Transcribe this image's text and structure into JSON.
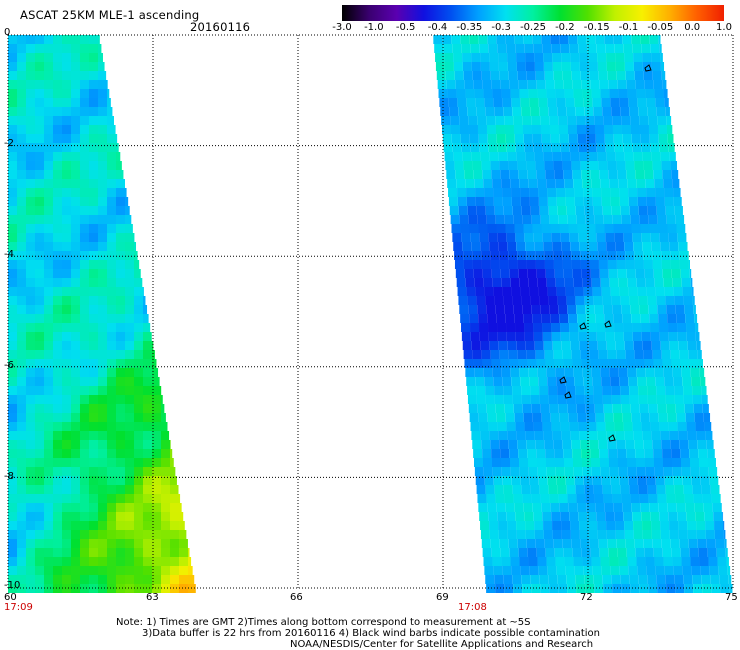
{
  "header": {
    "title": "ASCAT 25KM MLE-1 ascending",
    "date": "20160116"
  },
  "colorbar": {
    "labels": [
      "-3.0",
      "-1.0",
      "-0.5",
      "-0.4",
      "-0.35",
      "-0.3",
      "-0.25",
      "-0.2",
      "-0.15",
      "-0.1",
      "-0.05",
      "0.0",
      "1.0"
    ],
    "colors": [
      "#000000",
      "#3a0070",
      "#5a00b0",
      "#1010e0",
      "#0050f0",
      "#00a0ff",
      "#00e0f0",
      "#00f0a0",
      "#00e030",
      "#50e000",
      "#c0f000",
      "#f8f000",
      "#ffb000",
      "#ff6000",
      "#f02000"
    ]
  },
  "chart_data": {
    "type": "heatmap",
    "title": "ASCAT 25KM MLE-1 ascending",
    "subtitle": "20160116",
    "xlim": [
      60,
      75
    ],
    "ylim": [
      -10,
      0
    ],
    "x_ticks": [
      "60",
      "63",
      "66",
      "69",
      "72",
      "75"
    ],
    "y_ticks": [
      "0",
      "-2",
      "-4",
      "-6",
      "-8",
      "-10"
    ],
    "swath_times": [
      "17:09",
      "17:08"
    ],
    "value_scale": [
      "-3.0",
      "-1.0",
      "-0.5",
      "-0.4",
      "-0.35",
      "-0.3",
      "-0.25",
      "-0.2",
      "-0.15",
      "-0.1",
      "-0.05",
      "0.0",
      "1.0"
    ],
    "swaths": [
      {
        "name": "west",
        "lon_start": 60.0,
        "lon_end_top": 61.9,
        "lon_end_bottom": 63.9,
        "lat_top": 0,
        "lat_bottom": -10,
        "dominant_values": [
          -0.15,
          -0.05,
          0.0
        ]
      },
      {
        "name": "east",
        "lon_start_top": 68.8,
        "lon_start_bottom": 69.9,
        "lon_end_top": 73.5,
        "lon_end_bottom": 75.0,
        "lat_top": 0,
        "lat_bottom": -10,
        "dominant_values": [
          -0.4,
          -0.3,
          -0.25,
          -0.2,
          -0.15
        ]
      }
    ]
  },
  "footer": {
    "line1": "Note: 1) Times are GMT 2)Times along bottom correspond to measurement at ~5S",
    "line2": "3)Data buffer is 22 hrs from 20160116 4) Black wind barbs indicate possible contamination",
    "line3": "NOAA/NESDIS/Center for Satellite Applications and Research"
  }
}
